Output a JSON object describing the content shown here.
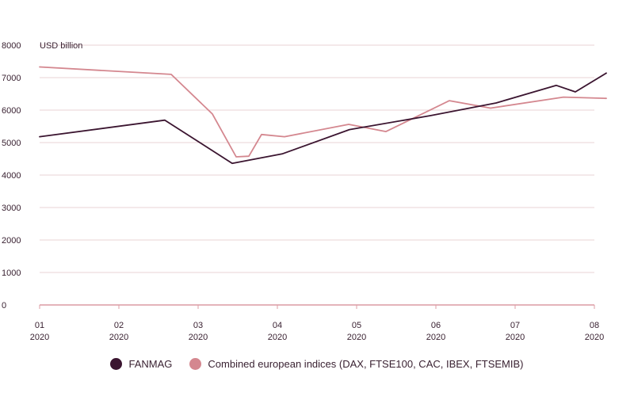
{
  "chart_data": {
    "type": "line",
    "ylabel": "USD billion",
    "ylim": [
      0,
      8000
    ],
    "yticks": [
      "0",
      "1000",
      "2000",
      "3000",
      "4000",
      "5000",
      "6000",
      "7000",
      "8000"
    ],
    "x_ticks": [
      {
        "month": "01",
        "year": "2020",
        "x": 1
      },
      {
        "month": "02",
        "year": "2020",
        "x": 2
      },
      {
        "month": "03",
        "year": "2020",
        "x": 3
      },
      {
        "month": "04",
        "year": "2020",
        "x": 4
      },
      {
        "month": "05",
        "year": "2020",
        "x": 5
      },
      {
        "month": "06",
        "year": "2020",
        "x": 6
      },
      {
        "month": "07",
        "year": "2020",
        "x": 7
      },
      {
        "month": "08",
        "year": "2020",
        "x": 8
      }
    ],
    "xlim": [
      1,
      8
    ],
    "grid": true,
    "legend_position": "bottom",
    "series": [
      {
        "name": "FANMAG",
        "color": "#3b1530",
        "points": [
          {
            "x": 1.0,
            "y": 5180
          },
          {
            "x": 2.58,
            "y": 5690
          },
          {
            "x": 3.43,
            "y": 4360
          },
          {
            "x": 4.06,
            "y": 4650
          },
          {
            "x": 4.91,
            "y": 5400
          },
          {
            "x": 5.93,
            "y": 5830
          },
          {
            "x": 6.76,
            "y": 6220
          },
          {
            "x": 7.52,
            "y": 6760
          },
          {
            "x": 7.76,
            "y": 6560
          },
          {
            "x": 8.15,
            "y": 7140
          }
        ]
      },
      {
        "name": "Combined european indices (DAX, FTSE100, CAC, IBEX, FTSEMIB)",
        "color": "#d4878f",
        "points": [
          {
            "x": 1.0,
            "y": 7330
          },
          {
            "x": 2.66,
            "y": 7100
          },
          {
            "x": 3.18,
            "y": 5880
          },
          {
            "x": 3.48,
            "y": 4560
          },
          {
            "x": 3.64,
            "y": 4580
          },
          {
            "x": 3.8,
            "y": 5250
          },
          {
            "x": 4.09,
            "y": 5180
          },
          {
            "x": 4.9,
            "y": 5560
          },
          {
            "x": 5.37,
            "y": 5340
          },
          {
            "x": 6.17,
            "y": 6290
          },
          {
            "x": 6.69,
            "y": 6060
          },
          {
            "x": 7.61,
            "y": 6400
          },
          {
            "x": 8.15,
            "y": 6360
          }
        ]
      }
    ]
  }
}
